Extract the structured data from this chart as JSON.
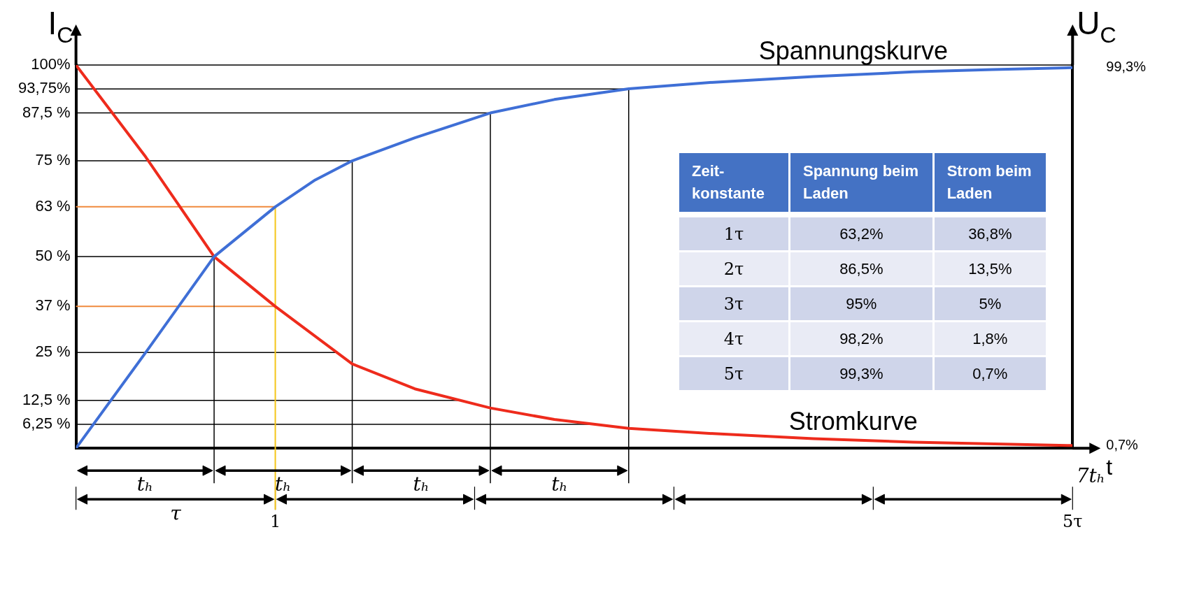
{
  "chart_data": [
    {
      "type": "line",
      "ylabel": "I$_{C}$",
      "y2label": "U$_{C}$",
      "xlabel": "t",
      "series": [
        {
          "name": "Spannungskurve",
          "color": "#3f6fd6",
          "x": [
            0,
            0.35,
            0.693,
            1,
            1.2,
            1.386,
            1.7,
            2.079,
            2.4,
            2.773,
            3.2,
            3.7,
            4.2,
            4.6,
            5
          ],
          "values": [
            0,
            25,
            50,
            63,
            70,
            75,
            81,
            87.5,
            91,
            93.8,
            95.5,
            97,
            98.2,
            98.8,
            99.3
          ]
        },
        {
          "name": "Stromkurve",
          "color": "#ee2b1c",
          "x": [
            0,
            0.35,
            0.693,
            1,
            1.386,
            1.7,
            2.079,
            2.4,
            2.773,
            3.2,
            3.7,
            4.2,
            5
          ],
          "values": [
            100,
            76,
            50,
            37,
            22,
            15.5,
            10.5,
            7.5,
            5.2,
            3.8,
            2.5,
            1.6,
            0.7
          ]
        }
      ],
      "xlim": [
        0,
        5
      ],
      "xticks": [
        {
          "value": 1,
          "label": "1"
        },
        {
          "value": 5,
          "label": "5τ"
        }
      ],
      "ylim": [
        0,
        100
      ],
      "yticks": [
        {
          "value": 100,
          "label": "100%"
        },
        {
          "value": 93.75,
          "label": "93,75%"
        },
        {
          "value": 87.5,
          "label": "87,5 %"
        },
        {
          "value": 75,
          "label": "75 %"
        },
        {
          "value": 63,
          "label": "63 %"
        },
        {
          "value": 50,
          "label": "50 %"
        },
        {
          "value": 37,
          "label": "37 %"
        },
        {
          "value": 25,
          "label": "25 %"
        },
        {
          "value": 12.5,
          "label": "12,5 %"
        },
        {
          "value": 6.25,
          "label": "6,25 %"
        }
      ],
      "y2lim": [
        0,
        100
      ],
      "y2ticks": [
        {
          "value": 99.3,
          "label": "99,3%"
        },
        {
          "value": 0.7,
          "label": "0,7%"
        }
      ],
      "ref_lines": [
        {
          "axis": "y",
          "value": 100
        },
        {
          "axis": "y",
          "value": 93.75
        },
        {
          "axis": "y",
          "value": 87.5
        },
        {
          "axis": "y",
          "value": 75
        },
        {
          "axis": "y",
          "value": 63,
          "color": "#f08a3c"
        },
        {
          "axis": "y",
          "value": 50
        },
        {
          "axis": "y",
          "value": 37,
          "color": "#f08a3c"
        },
        {
          "axis": "y",
          "value": 25
        },
        {
          "axis": "y",
          "value": 12.5
        },
        {
          "axis": "y",
          "value": 6.25
        },
        {
          "axis": "x",
          "value": 0.693
        },
        {
          "axis": "x",
          "value": 1,
          "color": "#f5c518"
        },
        {
          "axis": "x",
          "value": 1.386
        },
        {
          "axis": "x",
          "value": 2.079
        },
        {
          "axis": "x",
          "value": 2.773
        }
      ],
      "annotations": [
        "tₕ",
        "tₕ",
        "tₕ",
        "tₕ",
        "τ",
        "7tₕ"
      ],
      "grid": false,
      "legend": false,
      "marker": "none"
    },
    {
      "type": "heatmap",
      "ylabel": "Zeit-konstante",
      "categories": [
        "Spannung beim Laden",
        "Strom beim Laden"
      ],
      "y_categories": [
        "1τ",
        "2τ",
        "3τ",
        "4τ",
        "5τ"
      ],
      "cells": [
        [
          63.2,
          36.8
        ],
        [
          86.5,
          13.5
        ],
        [
          95,
          5
        ],
        [
          98.2,
          1.8
        ],
        [
          99.3,
          0.7
        ]
      ],
      "cell_labels": [
        [
          "63,2%",
          "36,8%"
        ],
        [
          "86,5%",
          "13,5%"
        ],
        [
          "95%",
          "5%"
        ],
        [
          "98,2%",
          "1,8%"
        ],
        [
          "99,3%",
          "0,7%"
        ]
      ]
    }
  ]
}
